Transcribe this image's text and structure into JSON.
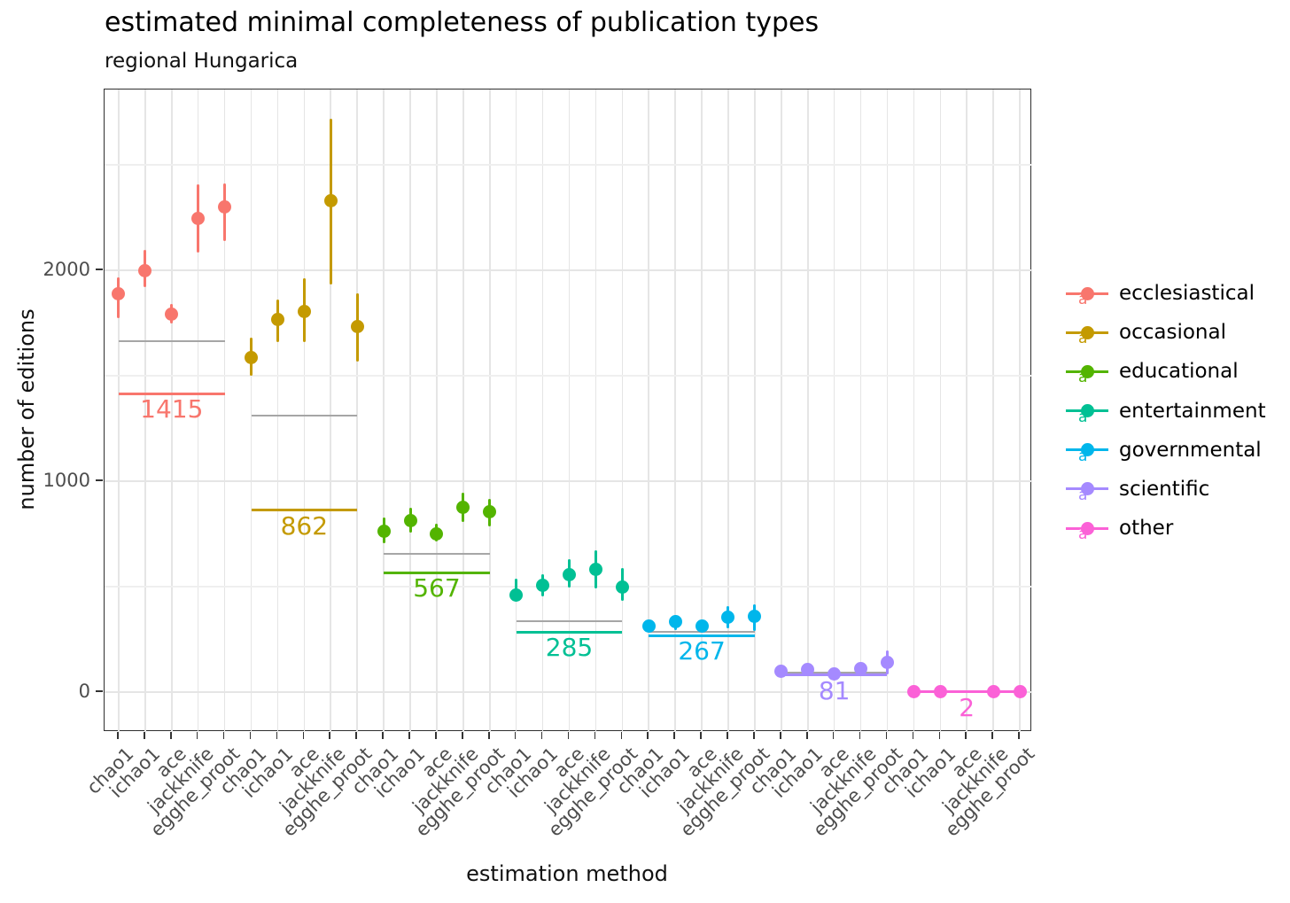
{
  "title": "estimated minimal completeness of publication types",
  "subtitle": "regional Hungarica",
  "axes": {
    "x_title": "estimation method",
    "y_title": "number of editions",
    "y_ticks": [
      0,
      1000,
      2000
    ],
    "y_minor_ticks": [
      500,
      1500,
      2500
    ]
  },
  "style_colors": {
    "reference_line": "#a6a6a6",
    "axis_text": "#4d4d4d",
    "panel_border": "#2f2f2f",
    "gridline": "#e5e5e5"
  },
  "chart_data": {
    "type": "pointrange",
    "title": "estimated minimal completeness of publication types",
    "subtitle": "regional Hungarica",
    "xlabel": "estimation method",
    "ylabel": "number of editions",
    "ylim": [
      -189,
      2857
    ],
    "y_ticks": [
      0,
      1000,
      2000
    ],
    "grid": true,
    "legend_position": "right",
    "methods": [
      "chao1",
      "ichao1",
      "ace",
      "jackknife",
      "egghe_proot"
    ],
    "series": [
      {
        "name": "ecclesiastical",
        "color": "#F8766D",
        "annotation": "1415",
        "annotated_line_value": 1415,
        "reference_line_value": 1664,
        "points": [
          {
            "method": "chao1",
            "value": 1890,
            "lo": 1772,
            "hi": 1968
          },
          {
            "method": "ichao1",
            "value": 2000,
            "lo": 1919,
            "hi": 2097
          },
          {
            "method": "ace",
            "value": 1790,
            "lo": 1747,
            "hi": 1842
          },
          {
            "method": "jackknife",
            "value": 2245,
            "lo": 2084,
            "hi": 2409
          },
          {
            "method": "egghe_proot",
            "value": 2300,
            "lo": 2139,
            "hi": 2410
          }
        ]
      },
      {
        "name": "occasional",
        "color": "#C49A00",
        "annotation": "862",
        "annotated_line_value": 862,
        "reference_line_value": 1311,
        "points": [
          {
            "method": "chao1",
            "value": 1588,
            "lo": 1500,
            "hi": 1681
          },
          {
            "method": "ichao1",
            "value": 1765,
            "lo": 1660,
            "hi": 1862
          },
          {
            "method": "ace",
            "value": 1803,
            "lo": 1660,
            "hi": 1962
          },
          {
            "method": "jackknife",
            "value": 2328,
            "lo": 1933,
            "hi": 2718
          },
          {
            "method": "egghe_proot",
            "value": 1735,
            "lo": 1567,
            "hi": 1891
          }
        ]
      },
      {
        "name": "educational",
        "color": "#53B400",
        "annotation": "567",
        "annotated_line_value": 567,
        "reference_line_value": 655,
        "points": [
          {
            "method": "chao1",
            "value": 761,
            "lo": 706,
            "hi": 828
          },
          {
            "method": "ichao1",
            "value": 811,
            "lo": 756,
            "hi": 874
          },
          {
            "method": "ace",
            "value": 752,
            "lo": 714,
            "hi": 798
          },
          {
            "method": "jackknife",
            "value": 878,
            "lo": 807,
            "hi": 945
          },
          {
            "method": "egghe_proot",
            "value": 853,
            "lo": 786,
            "hi": 916
          }
        ]
      },
      {
        "name": "entertainment",
        "color": "#00C094",
        "annotation": "285",
        "annotated_line_value": 285,
        "reference_line_value": 336,
        "points": [
          {
            "method": "chao1",
            "value": 462,
            "lo": 427,
            "hi": 539
          },
          {
            "method": "ichao1",
            "value": 508,
            "lo": 454,
            "hi": 559
          },
          {
            "method": "ace",
            "value": 555,
            "lo": 496,
            "hi": 630
          },
          {
            "method": "jackknife",
            "value": 584,
            "lo": 491,
            "hi": 672
          },
          {
            "method": "egghe_proot",
            "value": 496,
            "lo": 433,
            "hi": 588
          }
        ]
      },
      {
        "name": "governmental",
        "color": "#00B6EB",
        "annotation": "267",
        "annotated_line_value": 267,
        "reference_line_value": 286,
        "points": [
          {
            "method": "chao1",
            "value": 315,
            "lo": 286,
            "hi": 336
          },
          {
            "method": "ichao1",
            "value": 332,
            "lo": 294,
            "hi": 366
          },
          {
            "method": "ace",
            "value": 315,
            "lo": 300,
            "hi": 332
          },
          {
            "method": "jackknife",
            "value": 353,
            "lo": 303,
            "hi": 408
          },
          {
            "method": "egghe_proot",
            "value": 361,
            "lo": 290,
            "hi": 416
          }
        ]
      },
      {
        "name": "scientific",
        "color": "#A58AFF",
        "annotation": "81",
        "annotated_line_value": 81,
        "reference_line_value": 92,
        "points": [
          {
            "method": "chao1",
            "value": 97,
            "lo": 88,
            "hi": 106
          },
          {
            "method": "ichao1",
            "value": 109,
            "lo": 100,
            "hi": 118
          },
          {
            "method": "ace",
            "value": 88,
            "lo": 82,
            "hi": 95
          },
          {
            "method": "jackknife",
            "value": 113,
            "lo": 101,
            "hi": 126
          },
          {
            "method": "egghe_proot",
            "value": 139,
            "lo": 84,
            "hi": 197
          }
        ]
      },
      {
        "name": "other",
        "color": "#FB61D7",
        "annotation": "2",
        "annotated_line_value": 2,
        "reference_line_value": 4,
        "points": [
          {
            "method": "chao1",
            "value": 2,
            "lo": 2,
            "hi": 2
          },
          {
            "method": "ichao1",
            "value": 2,
            "lo": 2,
            "hi": 2
          },
          {
            "method": "ace",
            "value": null,
            "lo": null,
            "hi": null
          },
          {
            "method": "jackknife",
            "value": 2,
            "lo": 2,
            "hi": 2
          },
          {
            "method": "egghe_proot",
            "value": 2,
            "lo": 2,
            "hi": 2
          }
        ]
      }
    ]
  }
}
